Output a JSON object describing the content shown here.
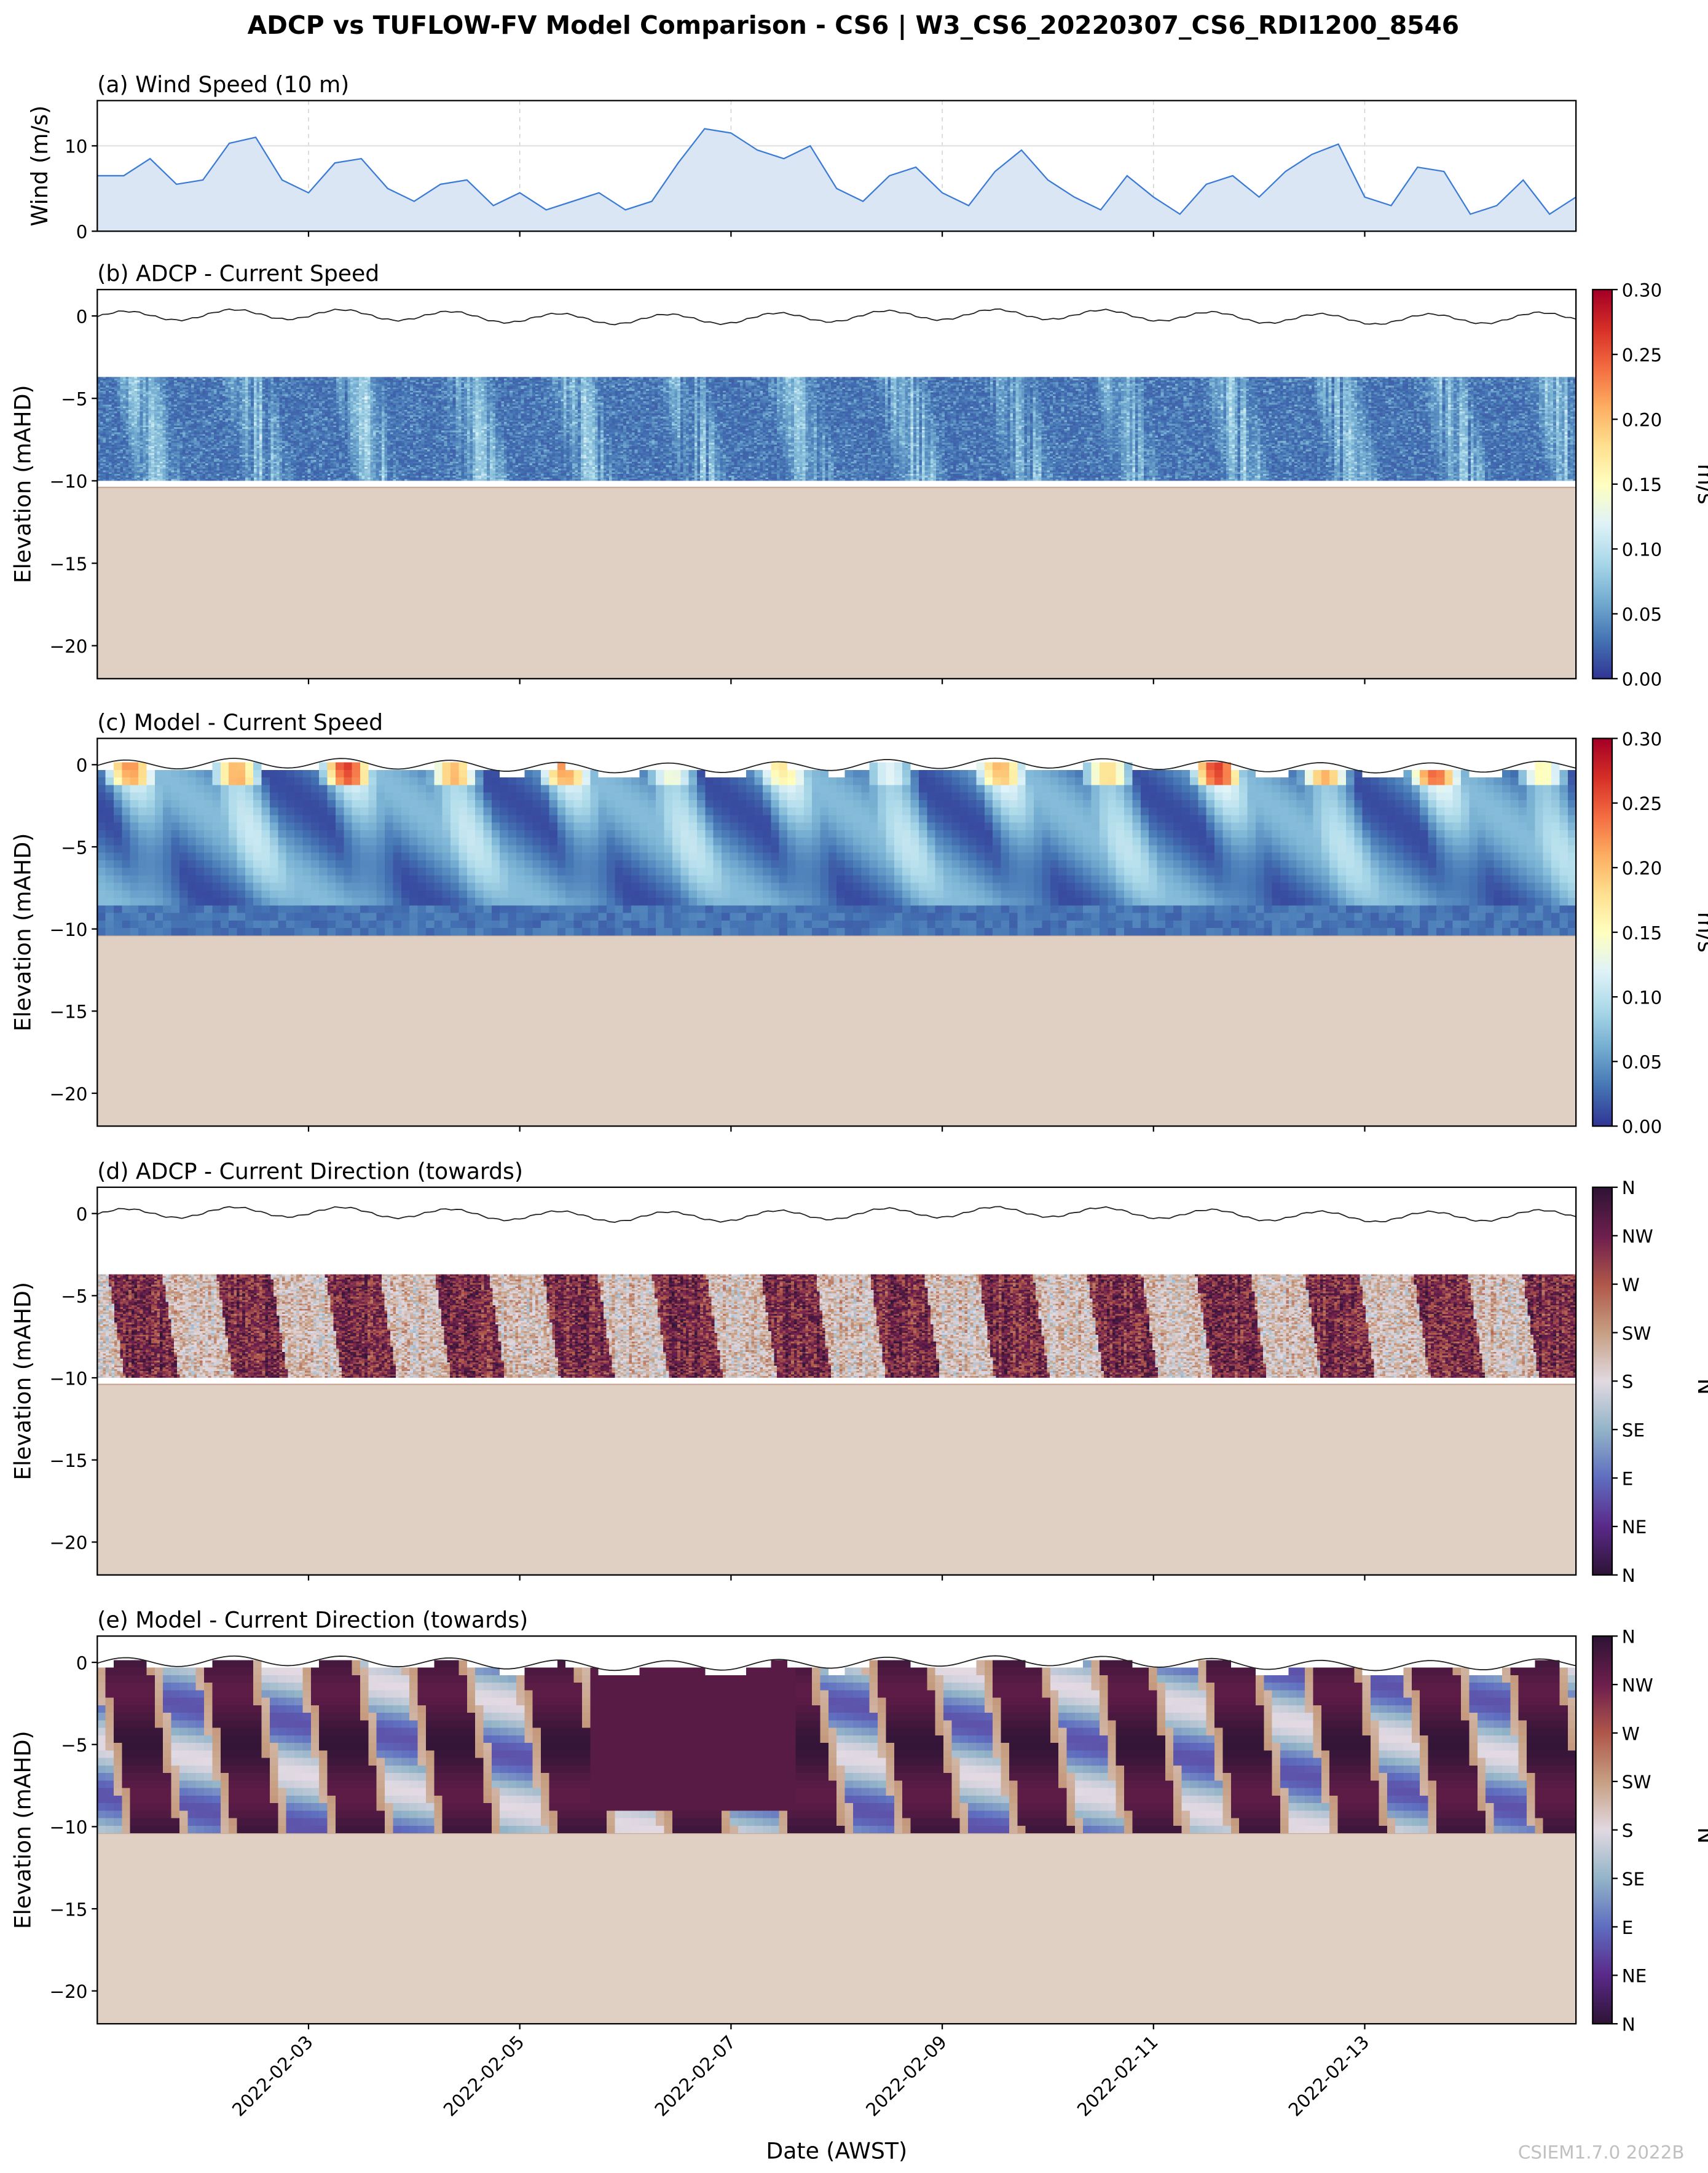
{
  "chart_data": {
    "title": "ADCP vs TUFLOW-FV Model Comparison - CS6 | W3_CS6_20220307_CS6_RDI1200_8546",
    "xlabel": "Date (AWST)",
    "x_range": [
      "2022-02-01",
      "2022-02-15"
    ],
    "x_ticks": [
      "2022-02-03",
      "2022-02-05",
      "2022-02-07",
      "2022-02-09",
      "2022-02-11",
      "2022-02-13"
    ],
    "watermark": "CSIEM1.7.0 2022B",
    "panels": [
      {
        "id": "a",
        "type": "area",
        "title": "(a) Wind Speed (10 m)",
        "ylabel": "Wind (m/s)",
        "ylim": [
          0,
          15.3
        ],
        "yticks": [
          "0",
          "10"
        ],
        "ytick_values": [
          0,
          10
        ],
        "x_start_day": 0,
        "x_step_days": 0.25,
        "values": [
          6.5,
          6.5,
          8.5,
          5.5,
          6,
          10.3,
          11,
          6,
          4.5,
          8,
          8.5,
          5,
          3.5,
          5.5,
          6,
          3,
          4.5,
          2.5,
          3.5,
          4.5,
          2.5,
          3.5,
          8,
          12,
          11.5,
          9.5,
          8.5,
          10,
          5,
          3.5,
          6.5,
          7.5,
          4.5,
          3,
          7,
          9.5,
          6,
          4,
          2.5,
          6.5,
          4,
          2,
          5.5,
          6.5,
          4,
          7,
          9,
          10.2,
          4,
          3,
          7.5,
          7,
          2,
          3,
          6,
          2,
          4
        ],
        "color": "#3a7bd5"
      },
      {
        "id": "b",
        "type": "heatmap",
        "title": "(b) ADCP - Current Speed",
        "ylabel": "Elevation (mAHD)",
        "ylim": [
          -22,
          1.6
        ],
        "yticks": [
          "0",
          "−5",
          "−10",
          "−15",
          "−20"
        ],
        "ytick_values": [
          0,
          -5,
          -10,
          -15,
          -20
        ],
        "data_elev_range": [
          -10,
          -3.7
        ],
        "seabed_elev": -10.4,
        "water_level_line": true,
        "colorbar": {
          "label": "m/s",
          "cmap": "RdYlBu_r",
          "vmin": 0,
          "vmax": 0.3,
          "ticks": [
            "0.00",
            "0.05",
            "0.10",
            "0.15",
            "0.20",
            "0.25",
            "0.30"
          ]
        }
      },
      {
        "id": "c",
        "type": "heatmap",
        "title": "(c) Model - Current Speed",
        "ylabel": "Elevation (mAHD)",
        "ylim": [
          -22,
          1.6
        ],
        "yticks": [
          "0",
          "−5",
          "−10",
          "−15",
          "−20"
        ],
        "ytick_values": [
          0,
          -5,
          -10,
          -15,
          -20
        ],
        "data_elev_range": [
          -10.4,
          0
        ],
        "seabed_elev": -10.4,
        "water_level_line": true,
        "colorbar": {
          "label": "m/s",
          "cmap": "RdYlBu_r",
          "vmin": 0,
          "vmax": 0.3,
          "ticks": [
            "0.00",
            "0.05",
            "0.10",
            "0.15",
            "0.20",
            "0.25",
            "0.30"
          ]
        }
      },
      {
        "id": "d",
        "type": "heatmap",
        "title": "(d) ADCP - Current Direction (towards)",
        "ylabel": "Elevation (mAHD)",
        "ylim": [
          -22,
          1.6
        ],
        "yticks": [
          "0",
          "−5",
          "−10",
          "−15",
          "−20"
        ],
        "ytick_values": [
          0,
          -5,
          -10,
          -15,
          -20
        ],
        "data_elev_range": [
          -10,
          -3.7
        ],
        "seabed_elev": -10.4,
        "water_level_line": true,
        "colorbar": {
          "label": "°N",
          "cmap": "twilight_shifted",
          "vmin": 0,
          "vmax": 360,
          "ticks": [
            "N",
            "NE",
            "E",
            "SE",
            "S",
            "SW",
            "W",
            "NW",
            "N"
          ]
        }
      },
      {
        "id": "e",
        "type": "heatmap",
        "title": "(e) Model - Current Direction (towards)",
        "ylabel": "Elevation (mAHD)",
        "ylim": [
          -22,
          1.6
        ],
        "yticks": [
          "0",
          "−5",
          "−10",
          "−15",
          "−20"
        ],
        "ytick_values": [
          0,
          -5,
          -10,
          -15,
          -20
        ],
        "data_elev_range": [
          -10.4,
          0
        ],
        "seabed_elev": -10.4,
        "water_level_line": true,
        "colorbar": {
          "label": "°N",
          "cmap": "twilight_shifted",
          "vmin": 0,
          "vmax": 360,
          "ticks": [
            "N",
            "NE",
            "E",
            "SE",
            "S",
            "SW",
            "W",
            "NW",
            "N"
          ]
        }
      }
    ]
  }
}
